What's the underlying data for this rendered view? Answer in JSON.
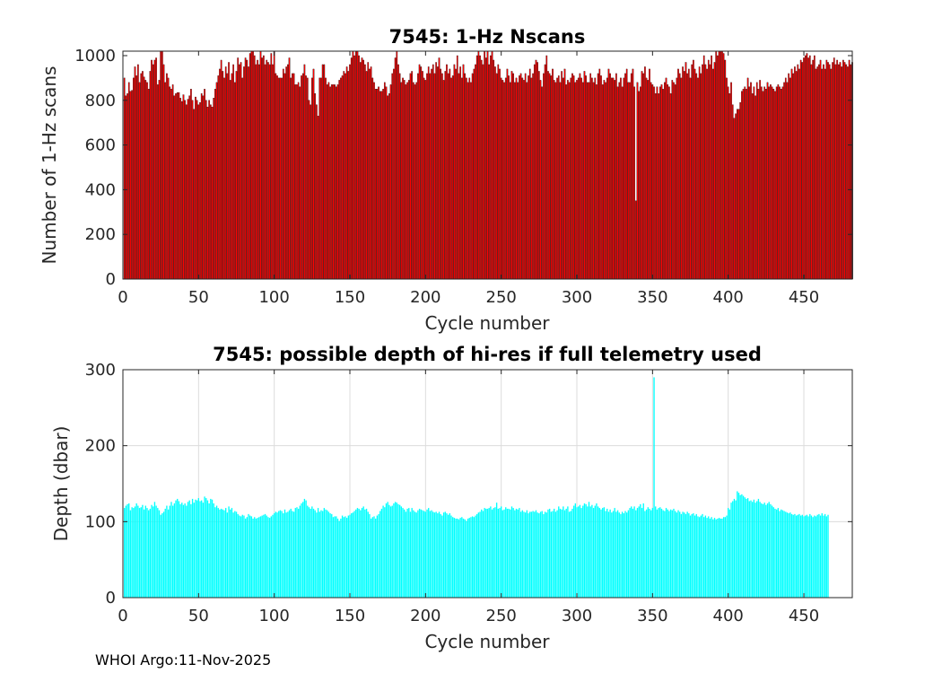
{
  "footer": "WHOI Argo:11-Nov-2025",
  "chart_data": [
    {
      "type": "bar",
      "title": "7545: 1-Hz Nscans",
      "xlabel": "Cycle number",
      "ylabel": "Number of 1-Hz scans",
      "xlim": [
        0,
        482
      ],
      "ylim": [
        0,
        1020
      ],
      "xticks": [
        0,
        50,
        100,
        150,
        200,
        250,
        300,
        350,
        400,
        450
      ],
      "yticks": [
        0,
        200,
        400,
        600,
        800,
        1000
      ],
      "grid": false,
      "bar_color": "#ff0000",
      "edge_color": "#000000",
      "cycles_start": 1,
      "values": [
        900,
        820,
        830,
        880,
        840,
        845,
        900,
        950,
        910,
        960,
        880,
        920,
        930,
        905,
        890,
        880,
        850,
        930,
        980,
        960,
        980,
        990,
        870,
        890,
        1020,
        1020,
        960,
        880,
        920,
        900,
        860,
        850,
        870,
        820,
        830,
        835,
        835,
        810,
        795,
        825,
        800,
        780,
        805,
        820,
        850,
        800,
        760,
        815,
        800,
        780,
        790,
        830,
        820,
        850,
        800,
        770,
        800,
        780,
        770,
        810,
        850,
        880,
        910,
        940,
        980,
        930,
        900,
        950,
        920,
        970,
        890,
        920,
        960,
        880,
        930,
        990,
        960,
        970,
        900,
        950,
        990,
        980,
        950,
        1010,
        1020,
        1020,
        1000,
        960,
        980,
        960,
        1020,
        990,
        1000,
        960,
        980,
        970,
        960,
        1010,
        960,
        1020,
        920,
        910,
        900,
        900,
        900,
        940,
        920,
        950,
        960,
        990,
        900,
        920,
        920,
        870,
        870,
        880,
        860,
        910,
        920,
        960,
        910,
        900,
        800,
        780,
        900,
        940,
        830,
        780,
        730,
        900,
        900,
        960,
        960,
        900,
        870,
        880,
        860,
        870,
        870,
        870,
        860,
        870,
        890,
        900,
        910,
        930,
        920,
        950,
        930,
        960,
        990,
        1020,
        1000,
        1020,
        1020,
        1000,
        970,
        990,
        980,
        960,
        930,
        970,
        940,
        950,
        900,
        880,
        850,
        850,
        860,
        840,
        840,
        850,
        880,
        860,
        820,
        830,
        870,
        920,
        940,
        990,
        1020,
        960,
        920,
        880,
        900,
        890,
        870,
        880,
        890,
        920,
        930,
        880,
        870,
        880,
        920,
        960,
        950,
        930,
        900,
        890,
        920,
        950,
        920,
        940,
        960,
        920,
        970,
        950,
        990,
        940,
        920,
        890,
        930,
        960,
        920,
        940,
        900,
        910,
        960,
        940,
        1000,
        920,
        950,
        900,
        960,
        920,
        900,
        880,
        900,
        880,
        920,
        940,
        960,
        1000,
        1020,
        1000,
        980,
        960,
        1020,
        990,
        1020,
        960,
        1000,
        1020,
        980,
        950,
        920,
        960,
        940,
        900,
        890,
        880,
        900,
        940,
        910,
        880,
        930,
        920,
        880,
        900,
        880,
        910,
        920,
        900,
        890,
        920,
        880,
        910,
        940,
        900,
        920,
        960,
        980,
        970,
        930,
        890,
        860,
        920,
        960,
        1000,
        930,
        920,
        910,
        940,
        890,
        880,
        900,
        910,
        880,
        930,
        900,
        940,
        870,
        890,
        880,
        900,
        920,
        910,
        880,
        890,
        900,
        920,
        900,
        880,
        930,
        910,
        880,
        880,
        920,
        900,
        880,
        900,
        870,
        920,
        940,
        910,
        870,
        890,
        880,
        900,
        940,
        920,
        900,
        900,
        890,
        920,
        860,
        880,
        900,
        860,
        900,
        920,
        940,
        880,
        880,
        920,
        940,
        860,
        350,
        880,
        840,
        860,
        930,
        920,
        950,
        900,
        890,
        940,
        880,
        870,
        860,
        830,
        860,
        830,
        860,
        870,
        850,
        880,
        900,
        870,
        860,
        830,
        890,
        880,
        870,
        900,
        940,
        920,
        900,
        950,
        930,
        970,
        920,
        940,
        900,
        960,
        980,
        940,
        920,
        900,
        950,
        920,
        960,
        1000,
        960,
        940,
        980,
        960,
        1000,
        940,
        970,
        1020,
        1000,
        1020,
        1020,
        1020,
        1010,
        980,
        900,
        860,
        830,
        880,
        780,
        720,
        740,
        760,
        760,
        790,
        840,
        850,
        860,
        850,
        900,
        860,
        880,
        830,
        860,
        820,
        880,
        850,
        890,
        860,
        840,
        860,
        850,
        880,
        860,
        870,
        860,
        850,
        840,
        860,
        870,
        860,
        850,
        860,
        880,
        900,
        880,
        920,
        900,
        940,
        920,
        950,
        930,
        960,
        940,
        980,
        970,
        990,
        1000,
        1010,
        990,
        1000,
        960,
        980,
        1000,
        940,
        950,
        960,
        980,
        940,
        960,
        940,
        980,
        970,
        960,
        940,
        970,
        990,
        960,
        980,
        960,
        970,
        950,
        980,
        970,
        960,
        950,
        980,
        960,
        970
      ]
    },
    {
      "type": "bar",
      "title": "7545: possible depth of hi-res if full telemetry used",
      "xlabel": "Cycle number",
      "ylabel": "Depth (dbar)",
      "xlim": [
        0,
        482
      ],
      "ylim": [
        0,
        300
      ],
      "xticks": [
        0,
        50,
        100,
        150,
        200,
        250,
        300,
        350,
        400,
        450
      ],
      "yticks": [
        0,
        100,
        200,
        300
      ],
      "grid": true,
      "bar_color": "#00ffff",
      "edge_color": "#00ffff",
      "cycles_start": 1,
      "values": [
        118,
        121,
        123,
        124,
        115,
        119,
        118,
        120,
        124,
        121,
        118,
        119,
        122,
        116,
        121,
        118,
        115,
        117,
        122,
        120,
        126,
        121,
        118,
        115,
        109,
        111,
        113,
        117,
        121,
        116,
        121,
        126,
        121,
        124,
        128,
        130,
        127,
        123,
        125,
        122,
        124,
        121,
        126,
        128,
        123,
        130,
        125,
        129,
        128,
        131,
        127,
        128,
        125,
        133,
        131,
        128,
        124,
        130,
        129,
        124,
        119,
        121,
        118,
        116,
        117,
        116,
        115,
        118,
        112,
        120,
        116,
        118,
        112,
        114,
        113,
        110,
        108,
        107,
        109,
        108,
        104,
        106,
        110,
        108,
        107,
        104,
        106,
        104,
        105,
        106,
        107,
        108,
        109,
        110,
        108,
        106,
        105,
        107,
        109,
        111,
        113,
        112,
        114,
        115,
        114,
        111,
        116,
        112,
        113,
        115,
        117,
        114,
        113,
        118,
        119,
        117,
        121,
        124,
        126,
        130,
        128,
        121,
        119,
        117,
        120,
        117,
        115,
        112,
        118,
        113,
        115,
        114,
        118,
        116,
        115,
        113,
        111,
        110,
        106,
        107,
        107,
        104,
        101,
        104,
        108,
        106,
        107,
        105,
        108,
        109,
        111,
        112,
        114,
        116,
        118,
        117,
        115,
        118,
        120,
        116,
        117,
        113,
        110,
        104,
        106,
        107,
        104,
        108,
        110,
        114,
        117,
        121,
        119,
        124,
        126,
        122,
        120,
        121,
        124,
        126,
        125,
        123,
        122,
        120,
        118,
        116,
        113,
        117,
        118,
        113,
        118,
        115,
        113,
        112,
        115,
        117,
        116,
        115,
        114,
        113,
        116,
        118,
        114,
        115,
        113,
        112,
        113,
        111,
        113,
        110,
        108,
        112,
        113,
        111,
        109,
        111,
        108,
        106,
        105,
        104,
        104,
        103,
        105,
        106,
        104,
        103,
        101,
        104,
        105,
        106,
        107,
        106,
        108,
        110,
        112,
        113,
        116,
        114,
        118,
        117,
        117,
        118,
        120,
        116,
        118,
        119,
        125,
        117,
        118,
        120,
        115,
        116,
        119,
        117,
        117,
        116,
        120,
        118,
        115,
        117,
        116,
        118,
        113,
        115,
        113,
        112,
        115,
        111,
        113,
        113,
        114,
        113,
        115,
        112,
        111,
        113,
        114,
        110,
        113,
        112,
        116,
        117,
        113,
        114,
        117,
        113,
        115,
        120,
        117,
        116,
        120,
        115,
        117,
        120,
        113,
        114,
        117,
        121,
        124,
        119,
        120,
        122,
        118,
        121,
        124,
        123,
        120,
        126,
        120,
        122,
        118,
        121,
        124,
        120,
        118,
        116,
        118,
        119,
        114,
        117,
        113,
        116,
        112,
        114,
        118,
        113,
        115,
        112,
        110,
        113,
        111,
        114,
        112,
        115,
        118,
        120,
        117,
        120,
        115,
        118,
        120,
        123,
        118,
        124,
        114,
        116,
        119,
        117,
        115,
        118,
        290,
        120,
        116,
        118,
        119,
        117,
        115,
        114,
        118,
        116,
        114,
        116,
        115,
        117,
        114,
        112,
        115,
        113,
        110,
        113,
        112,
        110,
        113,
        111,
        108,
        110,
        111,
        108,
        110,
        107,
        106,
        108,
        110,
        106,
        108,
        105,
        107,
        104,
        106,
        103,
        105,
        103,
        104,
        105,
        104,
        104,
        106,
        106,
        108,
        118,
        116,
        125,
        127,
        130,
        128,
        140,
        138,
        135,
        136,
        134,
        132,
        130,
        131,
        127,
        128,
        126,
        129,
        125,
        127,
        130,
        126,
        124,
        123,
        125,
        122,
        124,
        126,
        123,
        121,
        119,
        117,
        116,
        118,
        114,
        116,
        115,
        114,
        113,
        112,
        111,
        112,
        110,
        109,
        110,
        108,
        109,
        110,
        108,
        109,
        107,
        108,
        109,
        107,
        110,
        108,
        106,
        108,
        107,
        109,
        110,
        108,
        111,
        108,
        110,
        107,
        109
      ]
    }
  ]
}
